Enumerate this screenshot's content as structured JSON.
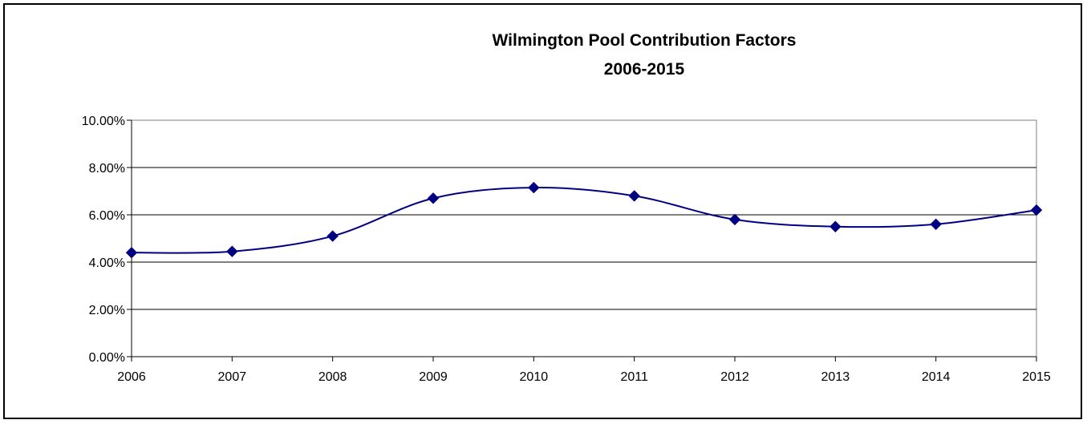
{
  "chart_data": {
    "type": "line",
    "title_lines": [
      "Wilmington Pool Contribution Factors",
      "2006-2015"
    ],
    "xlabel": "",
    "ylabel": "",
    "categories": [
      "2006",
      "2007",
      "2008",
      "2009",
      "2010",
      "2011",
      "2012",
      "2013",
      "2014",
      "2015"
    ],
    "series": [
      {
        "values": [
          0.044,
          0.0445,
          0.051,
          0.067,
          0.0715,
          0.068,
          0.058,
          0.055,
          0.056,
          0.062
        ],
        "color": "#000080",
        "marker": "diamond",
        "smooth": true
      }
    ],
    "ylim": [
      0,
      0.1
    ],
    "y_ticks": [
      0,
      0.02,
      0.04,
      0.06,
      0.08,
      0.1
    ],
    "y_tick_labels": [
      "0.00%",
      "2.00%",
      "4.00%",
      "6.00%",
      "8.00%",
      "10.00%"
    ],
    "grid": "horizontal",
    "legend": "none"
  }
}
